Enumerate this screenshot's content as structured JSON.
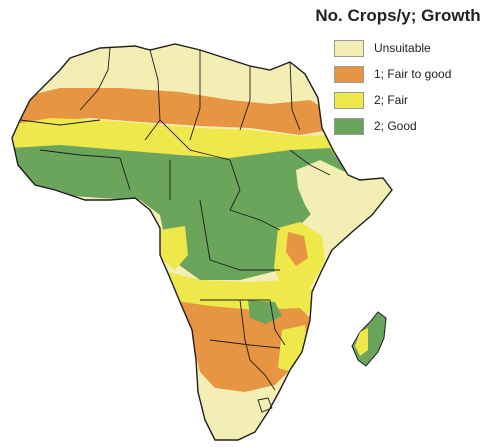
{
  "legend": {
    "title": "No. Crops/y; Growth",
    "items": [
      {
        "label": "Unsuitable",
        "color": "#f3eeb4"
      },
      {
        "label": "1; Fair to good",
        "color": "#e79443"
      },
      {
        "label": "2; Fair",
        "color": "#eee84a"
      },
      {
        "label": "2; Good",
        "color": "#6aa55b"
      }
    ]
  },
  "colors": {
    "border": "#1e1e1e",
    "background": "#ffffff"
  }
}
